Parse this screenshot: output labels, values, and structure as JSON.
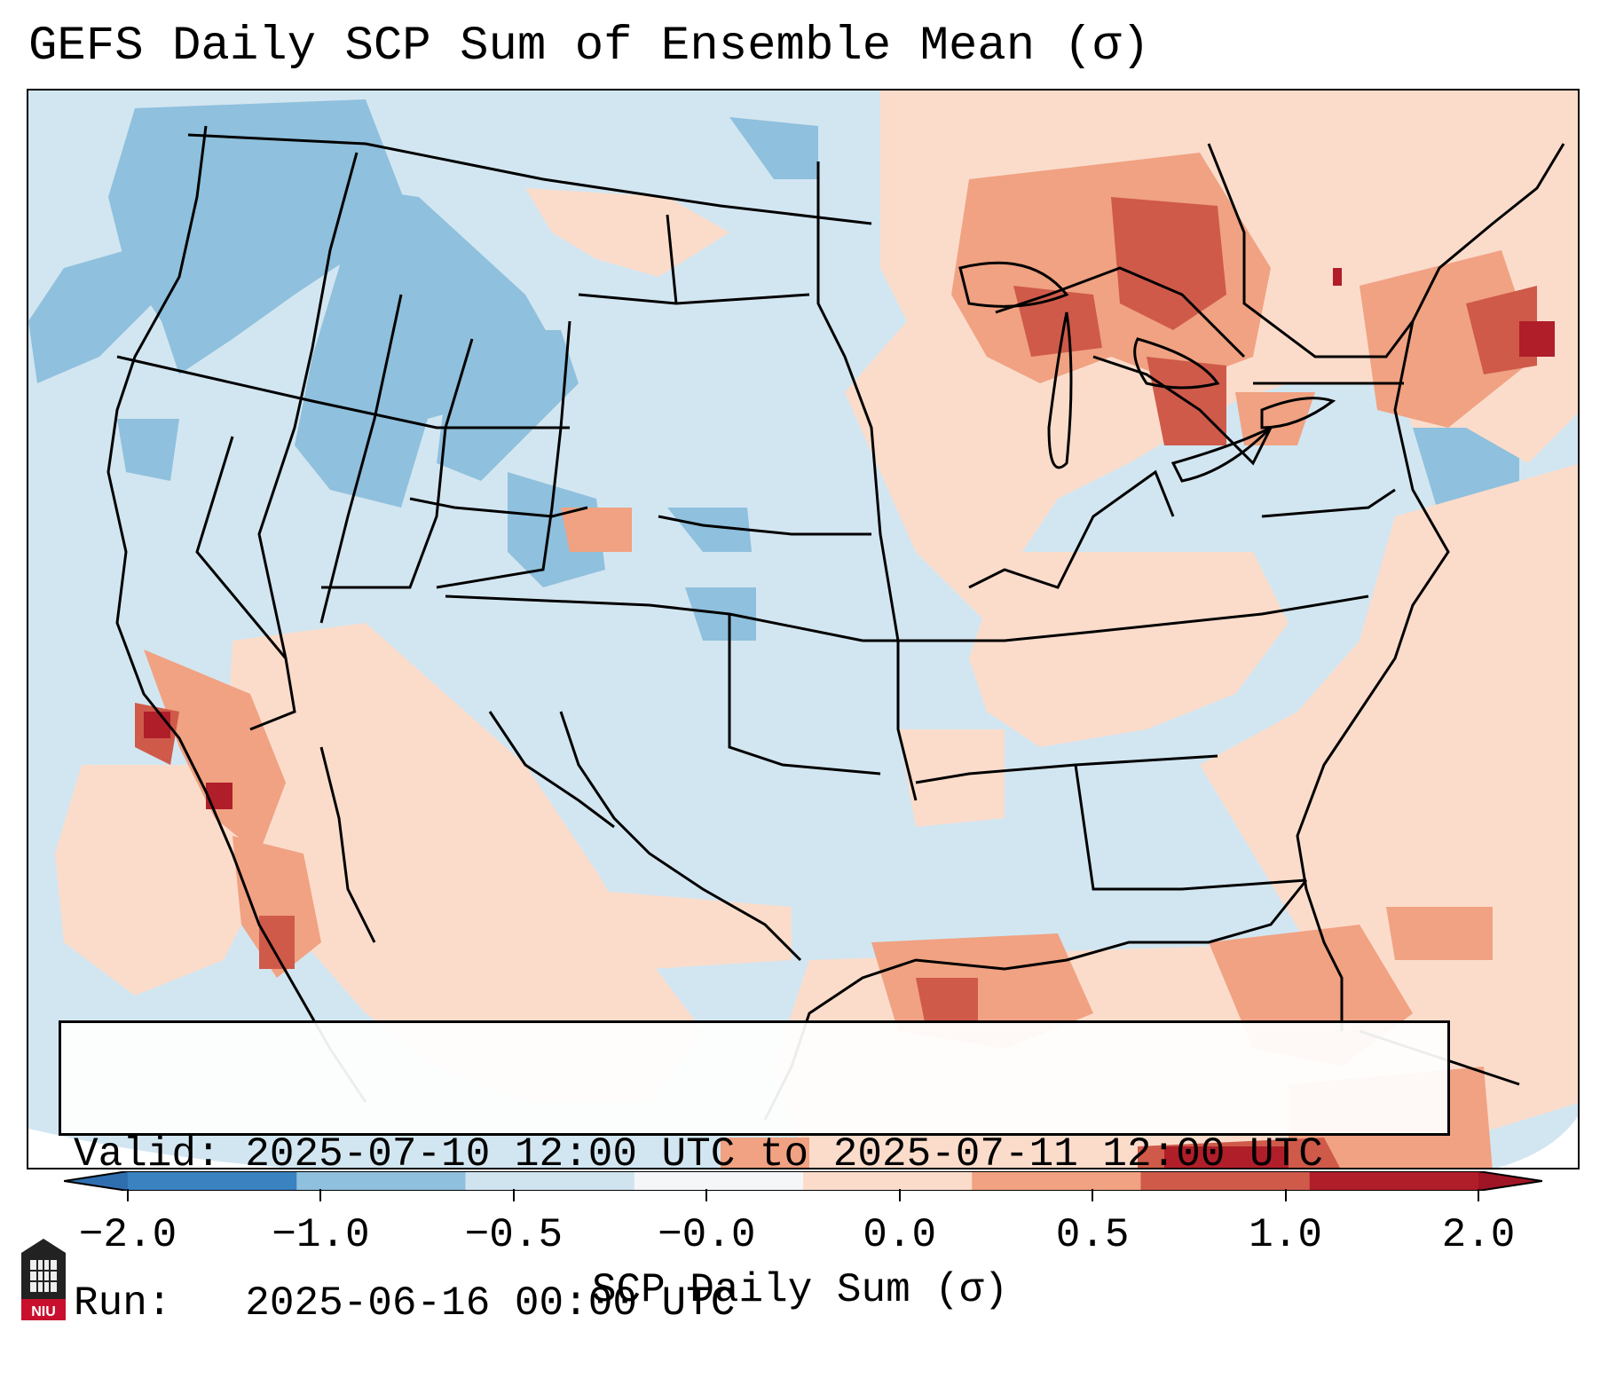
{
  "title": "GEFS Daily SCP Sum of Ensemble Mean (σ)",
  "info": {
    "valid_label": "Valid:",
    "valid_value": "2025-07-10 12:00 UTC to 2025-07-11 12:00 UTC",
    "run_label": "Run:",
    "run_value": "2025-06-16 00:00 UTC"
  },
  "colorbar": {
    "label": "SCP Daily Sum (σ)",
    "ticks": [
      "−2.0",
      "−1.0",
      "−0.5",
      "−0.0",
      "0.0",
      "0.5",
      "1.0",
      "2.0"
    ],
    "colors": [
      "#3a82c0",
      "#8fc0dd",
      "#d0e4f0",
      "#f4f6f8",
      "#fbdccb",
      "#f0a282",
      "#cf5a4a",
      "#b01e2a"
    ],
    "under_color": "#2f6fb0",
    "over_color": "#a01525"
  },
  "map": {
    "ocean_background": "#d2e6f1",
    "anomaly_regions": [
      {
        "name": "west-pacific-coast",
        "level": "below",
        "color": "#8fc0dd"
      },
      {
        "name": "northern-rockies",
        "level": "below",
        "color": "#8fc0dd"
      },
      {
        "name": "southern-california",
        "level": "above",
        "color": "#f0a282"
      },
      {
        "name": "great-lakes",
        "level": "above",
        "color": "#cf5a4a"
      },
      {
        "name": "new-england",
        "level": "above",
        "color": "#cf5a4a"
      },
      {
        "name": "gulf-of-mexico",
        "level": "above",
        "color": "#f0a282"
      },
      {
        "name": "caribbean",
        "level": "above",
        "color": "#b01e2a"
      }
    ]
  },
  "logo_text": "NIU"
}
